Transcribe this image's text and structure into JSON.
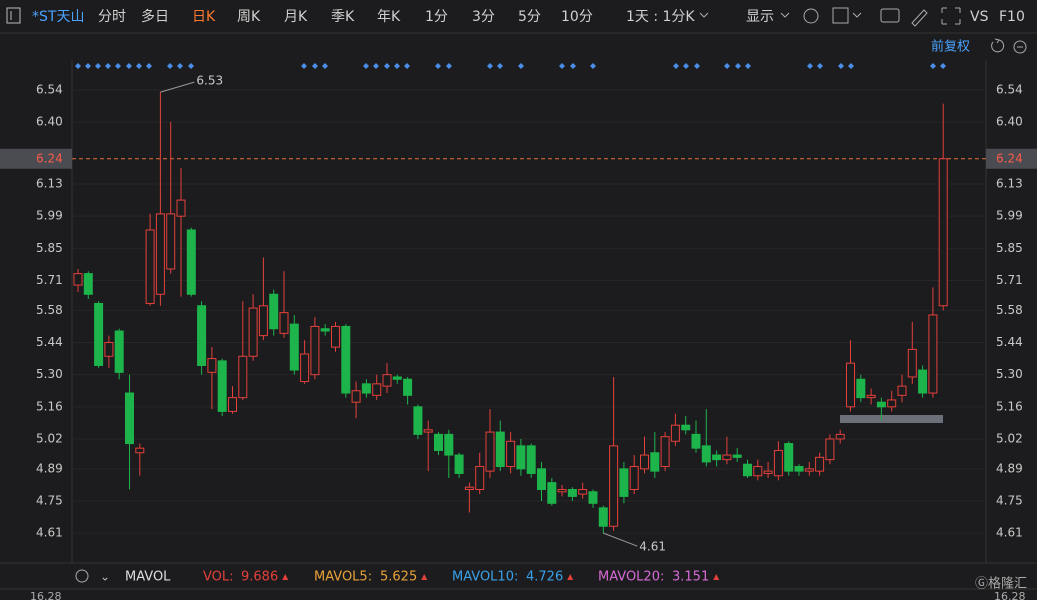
{
  "toolbar": {
    "symbol": "*ST天山",
    "tabs": [
      "分时",
      "多日",
      "日K",
      "周K",
      "月K",
      "季K",
      "年K",
      "1分",
      "3分",
      "5分",
      "10分"
    ],
    "active_tab": "日K",
    "period": "1天 : 1分K",
    "display": "显示",
    "vs": "VS",
    "f10": "F10",
    "adjust": "前复权"
  },
  "chart_data": {
    "type": "candlestick",
    "open": [
      5.69,
      5.74,
      5.61,
      5.38,
      5.49,
      5.22,
      4.96,
      5.61,
      5.65,
      5.76,
      5.99,
      5.93,
      5.6,
      5.31,
      5.36,
      5.14,
      5.2,
      5.38,
      5.47,
      5.65,
      5.48,
      5.52,
      5.27,
      5.3,
      5.5,
      5.42,
      5.51,
      5.18,
      5.26,
      5.21,
      5.25,
      5.29,
      5.28,
      5.16,
      5.05,
      5.04,
      5.04,
      4.95,
      4.8,
      4.8,
      4.88,
      5.05,
      4.9,
      4.99,
      4.99,
      4.89,
      4.83,
      4.79,
      4.8,
      4.78,
      4.79,
      4.72,
      4.64,
      4.89,
      4.8,
      4.89,
      4.96,
      4.9,
      5.01,
      5.08,
      5.04,
      4.99,
      4.95,
      4.93,
      4.95,
      4.91,
      4.86,
      4.87,
      4.86,
      5.0,
      4.9,
      4.88,
      4.88,
      4.93,
      5.02,
      5.16,
      5.28,
      5.2,
      5.18,
      5.16,
      5.21,
      5.29,
      5.32,
      5.22,
      5.6
    ],
    "high": [
      5.76,
      5.75,
      5.62,
      5.47,
      5.5,
      5.3,
      5.0,
      6.0,
      6.53,
      6.4,
      6.2,
      5.94,
      5.62,
      5.42,
      5.37,
      5.25,
      5.62,
      5.65,
      5.81,
      5.67,
      5.75,
      5.56,
      5.45,
      5.55,
      5.52,
      5.53,
      5.52,
      5.27,
      5.28,
      5.3,
      5.35,
      5.3,
      5.29,
      5.17,
      5.1,
      5.05,
      5.06,
      4.96,
      4.83,
      4.96,
      5.15,
      5.1,
      5.05,
      5.02,
      5.0,
      4.92,
      4.85,
      4.82,
      4.81,
      4.83,
      4.8,
      4.73,
      5.29,
      4.92,
      4.95,
      5.03,
      5.05,
      5.05,
      5.13,
      5.12,
      5.1,
      5.15,
      4.97,
      5.03,
      4.98,
      4.93,
      4.93,
      4.92,
      5.01,
      5.01,
      4.91,
      4.92,
      4.96,
      5.04,
      5.06,
      5.45,
      5.3,
      5.24,
      5.2,
      5.23,
      5.3,
      5.53,
      5.34,
      5.68,
      6.48
    ],
    "low": [
      5.66,
      5.63,
      5.33,
      5.33,
      5.28,
      4.8,
      4.86,
      5.6,
      5.6,
      5.74,
      5.64,
      5.64,
      5.3,
      5.15,
      5.12,
      5.13,
      5.19,
      5.36,
      5.45,
      5.47,
      5.46,
      5.3,
      5.26,
      5.28,
      5.47,
      5.4,
      5.2,
      5.11,
      5.2,
      5.19,
      5.22,
      5.26,
      5.17,
      5.02,
      4.88,
      4.95,
      4.85,
      4.85,
      4.7,
      4.78,
      4.85,
      4.88,
      4.87,
      4.86,
      4.85,
      4.75,
      4.73,
      4.77,
      4.75,
      4.76,
      4.72,
      4.61,
      4.62,
      4.74,
      4.78,
      4.87,
      4.85,
      4.88,
      4.99,
      5.04,
      4.96,
      4.9,
      4.9,
      4.91,
      4.92,
      4.85,
      4.84,
      4.85,
      4.84,
      4.86,
      4.86,
      4.86,
      4.86,
      4.91,
      5.0,
      5.14,
      5.18,
      5.17,
      5.1,
      5.14,
      5.18,
      5.26,
      5.2,
      5.2,
      5.58
    ],
    "close": [
      5.74,
      5.65,
      5.34,
      5.44,
      5.31,
      5.0,
      4.98,
      5.93,
      6.0,
      6.0,
      6.06,
      5.65,
      5.34,
      5.37,
      5.14,
      5.2,
      5.38,
      5.59,
      5.6,
      5.5,
      5.57,
      5.32,
      5.39,
      5.51,
      5.49,
      5.51,
      5.22,
      5.23,
      5.22,
      5.26,
      5.3,
      5.28,
      5.21,
      5.04,
      5.06,
      4.97,
      4.95,
      4.87,
      4.81,
      4.9,
      5.05,
      4.9,
      5.01,
      4.89,
      4.87,
      4.8,
      4.74,
      4.8,
      4.77,
      4.8,
      4.74,
      4.64,
      4.99,
      4.77,
      4.9,
      4.95,
      4.88,
      5.03,
      5.08,
      5.06,
      4.98,
      4.92,
      4.93,
      4.95,
      4.94,
      4.86,
      4.9,
      4.88,
      4.97,
      4.88,
      4.88,
      4.89,
      4.94,
      5.02,
      5.04,
      5.35,
      5.2,
      5.21,
      5.16,
      5.19,
      5.25,
      5.41,
      5.22,
      5.56,
      6.24
    ],
    "up_color": "#e5403b",
    "down_color": "#1db54b",
    "ylim": [
      4.48,
      6.67
    ],
    "yticks": [
      6.54,
      {
        "value": 6.4,
        "label": "6.40"
      },
      6.13,
      5.99,
      5.85,
      5.71,
      5.58,
      5.44,
      {
        "value": 5.3,
        "label": "5.30"
      },
      5.16,
      5.02,
      4.89,
      4.75,
      4.61
    ],
    "grid": true,
    "last_price": 6.24,
    "max_label": 6.53,
    "min_label": 4.61,
    "volume_axis_top": 16.28,
    "indicator": {
      "name": "MAVOL",
      "items": [
        {
          "name": "VOL:",
          "value": 9.686,
          "color": "#e5403b"
        },
        {
          "name": "MAVOL5:",
          "value": 5.625,
          "color": "#e8a23a"
        },
        {
          "name": "MAVOL10:",
          "value": 4.726,
          "color": "#3aa0e8"
        },
        {
          "name": "MAVOL20:",
          "value": 3.151,
          "color": "#d66bd6"
        }
      ]
    }
  }
}
